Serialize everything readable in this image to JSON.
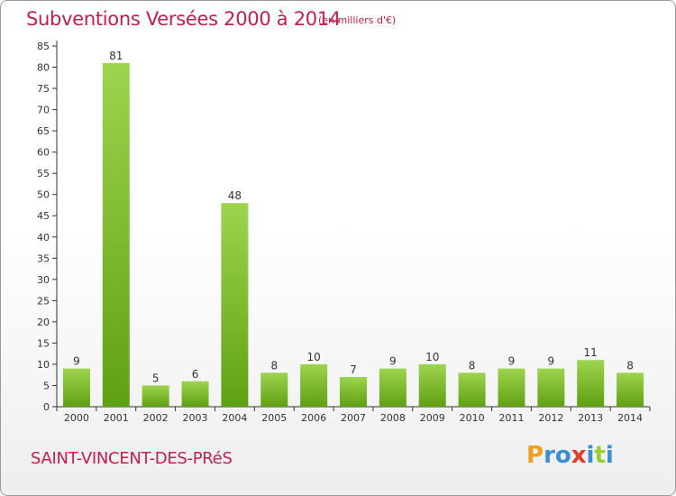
{
  "header": {
    "title": "Subventions Versées 2000 à 2014",
    "subtitle": "(en milliers d'€)"
  },
  "footer": {
    "commune": "SAINT-VINCENT-DES-PRéS",
    "logo_text": "Proxiti",
    "logo_letters": [
      "P",
      "r",
      "o",
      "x",
      "i",
      "t",
      "i"
    ],
    "logo_colors": [
      "#f0a020",
      "#3a8fd0",
      "#3a8fd0",
      "#e03a2a",
      "#3a8fd0",
      "#9acd32",
      "#3a8fd0"
    ]
  },
  "colors": {
    "bar_top": "#9ed44e",
    "bar_bottom": "#5fa012",
    "axis": "#333333",
    "title": "#c0204a"
  },
  "chart_data": {
    "type": "bar",
    "title": "Subventions Versées 2000 à 2014",
    "subtitle": "(en milliers d'€)",
    "xlabel": "",
    "ylabel": "",
    "categories": [
      "2000",
      "2001",
      "2002",
      "2003",
      "2004",
      "2005",
      "2006",
      "2007",
      "2008",
      "2009",
      "2010",
      "2011",
      "2012",
      "2013",
      "2014"
    ],
    "values": [
      9,
      81,
      5,
      6,
      48,
      8,
      10,
      7,
      9,
      10,
      8,
      9,
      9,
      11,
      8
    ],
    "ylim": [
      0,
      85
    ],
    "yticks": [
      0,
      5,
      10,
      15,
      20,
      25,
      30,
      35,
      40,
      45,
      50,
      55,
      60,
      65,
      70,
      75,
      80,
      85
    ],
    "grid": false,
    "data_labels": true
  }
}
